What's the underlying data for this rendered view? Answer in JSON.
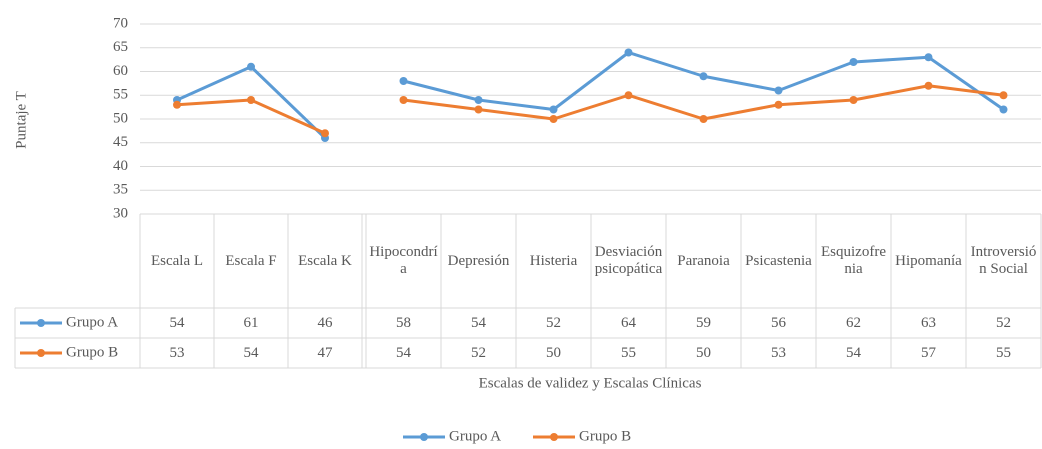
{
  "chart_data": {
    "type": "line",
    "y_label": "Puntaje T",
    "x_label": "Escalas de validez y Escalas Clínicas",
    "categories": [
      "Escala L",
      "Escala F",
      "Escala K",
      "Hipocondría",
      "Depresión",
      "Histeria",
      "Desviación psicopática",
      "Paranoia",
      "Psicastenia",
      "Esquizofrenia",
      "Hipomanía",
      "Introversión Social"
    ],
    "series": [
      {
        "name": "Grupo A",
        "color": "#5b9bd5",
        "values": [
          54,
          61,
          46,
          58,
          54,
          52,
          64,
          59,
          56,
          62,
          63,
          52
        ]
      },
      {
        "name": "Grupo B",
        "color": "#ed7d31",
        "values": [
          53,
          54,
          47,
          54,
          52,
          50,
          55,
          50,
          53,
          54,
          57,
          55
        ]
      }
    ],
    "ylim": [
      30,
      70
    ],
    "yticks": [
      30,
      35,
      40,
      45,
      50,
      55,
      60,
      65,
      70
    ],
    "grid": true,
    "legend": "bottom"
  }
}
